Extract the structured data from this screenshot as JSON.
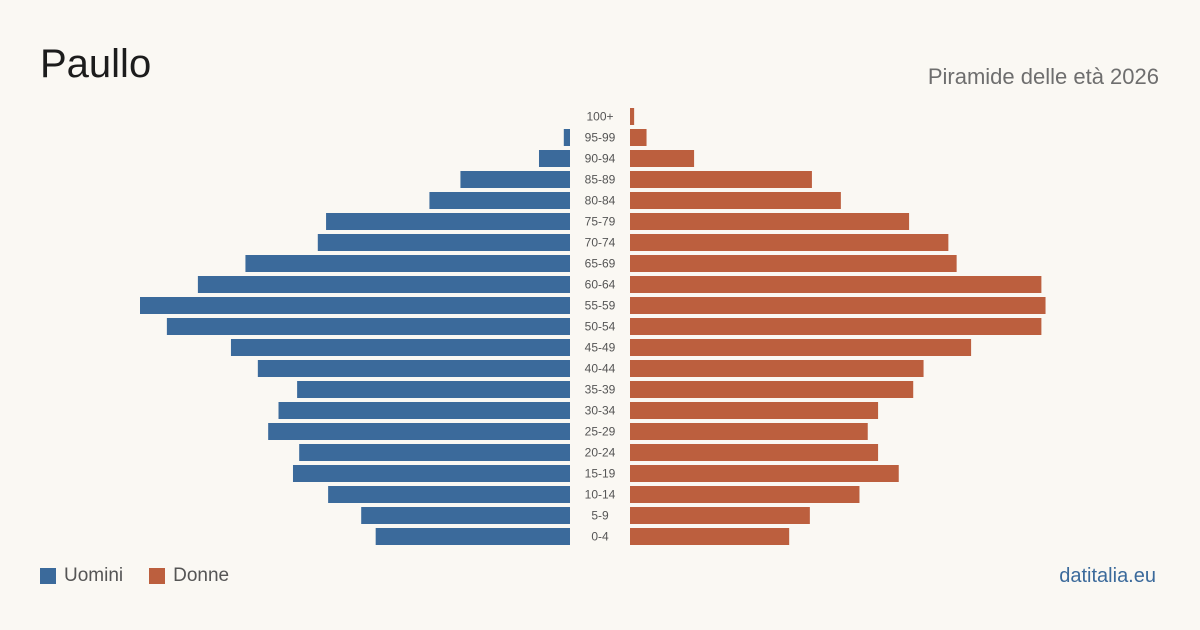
{
  "header": {
    "title": "Paullo",
    "subtitle": "Piramide delle età 2026"
  },
  "legend": {
    "men_label": "Uomini",
    "women_label": "Donne"
  },
  "source_link": "datitalia.eu",
  "colors": {
    "men": "#3b6a9b",
    "women": "#bc5f3e",
    "background": "#faf8f3"
  },
  "chart_data": {
    "type": "bar",
    "orientation": "horizontal-pyramid",
    "title": "",
    "categories": [
      "100+",
      "95-99",
      "90-94",
      "85-89",
      "80-84",
      "75-79",
      "70-74",
      "65-69",
      "60-64",
      "55-59",
      "50-54",
      "45-49",
      "40-44",
      "35-39",
      "30-34",
      "25-29",
      "20-24",
      "15-19",
      "10-14",
      "5-9",
      "0-4"
    ],
    "series": [
      {
        "name": "Uomini",
        "values": [
          0,
          3,
          15,
          53,
          68,
          118,
          122,
          157,
          180,
          208,
          195,
          164,
          151,
          132,
          141,
          146,
          131,
          134,
          117,
          101,
          94
        ]
      },
      {
        "name": "Donne",
        "values": [
          2,
          8,
          31,
          88,
          102,
          135,
          154,
          158,
          199,
          201,
          199,
          165,
          142,
          137,
          120,
          115,
          120,
          130,
          111,
          87,
          77
        ]
      }
    ],
    "grid": false,
    "legend_position": "bottom-left"
  }
}
